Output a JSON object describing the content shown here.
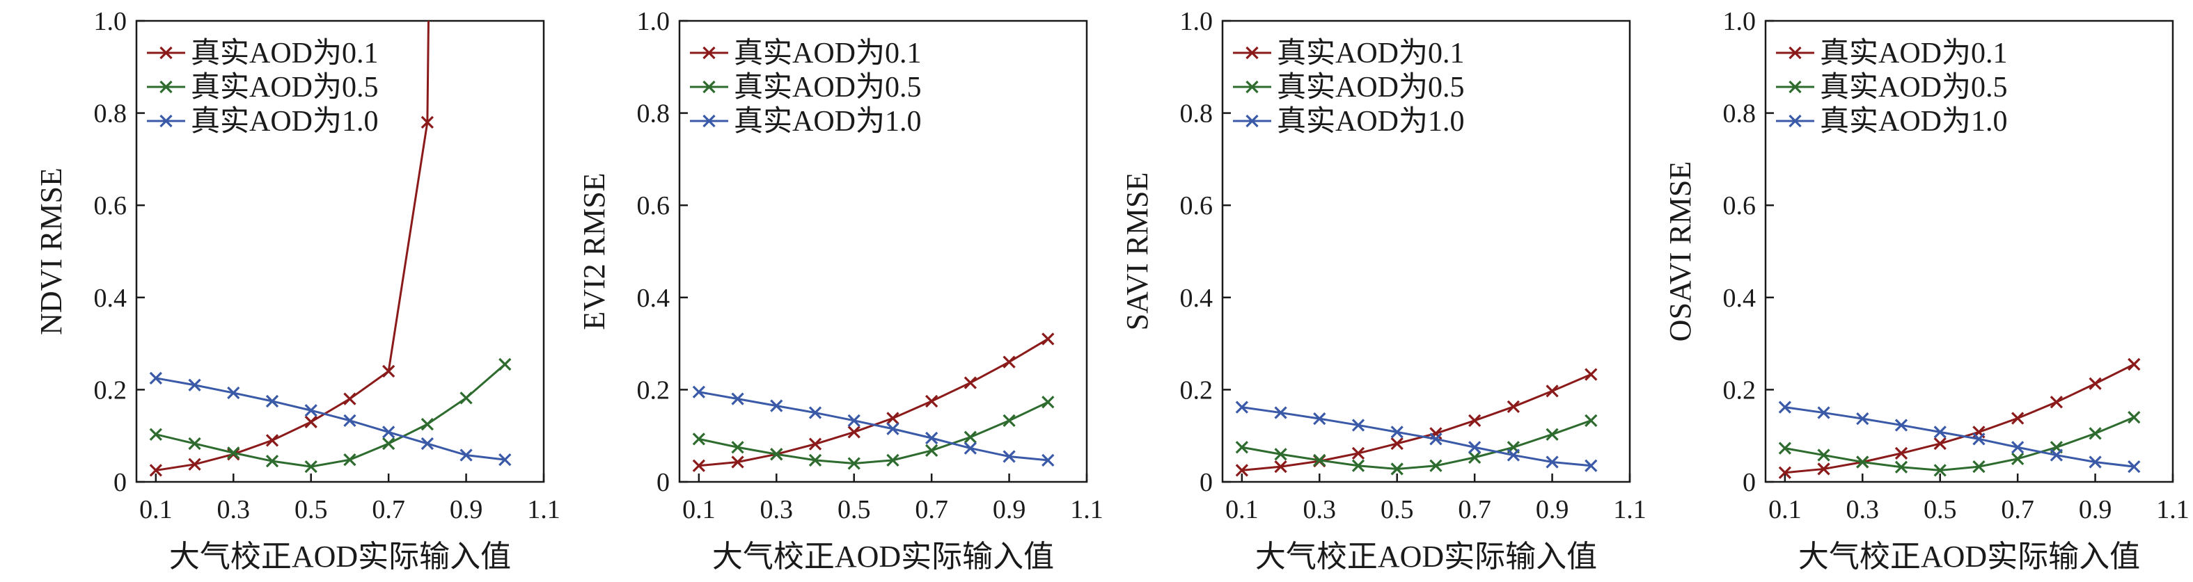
{
  "chart_data": [
    {
      "type": "line",
      "xlabel": "大气校正AOD实际输入值",
      "ylabel": "NDVI RMSE",
      "xlim": [
        0.05,
        1.1
      ],
      "ylim": [
        0,
        1.0
      ],
      "xticks": [
        "0.1",
        "0.3",
        "0.5",
        "0.7",
        "0.9",
        "1.1"
      ],
      "yticks": [
        "0",
        "0.2",
        "0.4",
        "0.6",
        "0.8",
        "1.0"
      ],
      "x": [
        0.1,
        0.2,
        0.3,
        0.4,
        0.5,
        0.6,
        0.7,
        0.8,
        0.9,
        1.0
      ],
      "legend_position": "top-left",
      "series": [
        {
          "name": "真实AOD为0.1",
          "color": "#8b1a1a",
          "values": [
            0.025,
            0.038,
            0.06,
            0.09,
            0.13,
            0.18,
            0.24,
            0.78,
            null,
            null
          ]
        },
        {
          "name": "真实AOD为0.5",
          "color": "#2e6b2e",
          "values": [
            0.103,
            0.083,
            0.063,
            0.045,
            0.033,
            0.048,
            0.083,
            0.125,
            0.182,
            0.255
          ]
        },
        {
          "name": "真实AOD为1.0",
          "color": "#3a5aa8",
          "values": [
            0.225,
            0.21,
            0.193,
            0.175,
            0.155,
            0.133,
            0.108,
            0.083,
            0.058,
            0.048
          ]
        }
      ]
    },
    {
      "type": "line",
      "xlabel": "大气校正AOD实际输入值",
      "ylabel": "EVI2 RMSE",
      "xlim": [
        0.05,
        1.1
      ],
      "ylim": [
        0,
        1.0
      ],
      "xticks": [
        "0.1",
        "0.3",
        "0.5",
        "0.7",
        "0.9",
        "1.1"
      ],
      "yticks": [
        "0",
        "0.2",
        "0.4",
        "0.6",
        "0.8",
        "1.0"
      ],
      "x": [
        0.1,
        0.2,
        0.3,
        0.4,
        0.5,
        0.6,
        0.7,
        0.8,
        0.9,
        1.0
      ],
      "legend_position": "top-left",
      "series": [
        {
          "name": "真实AOD为0.1",
          "color": "#8b1a1a",
          "values": [
            0.035,
            0.043,
            0.06,
            0.082,
            0.108,
            0.138,
            0.175,
            0.215,
            0.26,
            0.31
          ]
        },
        {
          "name": "真实AOD为0.5",
          "color": "#2e6b2e",
          "values": [
            0.093,
            0.075,
            0.06,
            0.047,
            0.04,
            0.047,
            0.068,
            0.097,
            0.133,
            0.173
          ]
        },
        {
          "name": "真实AOD为1.0",
          "color": "#3a5aa8",
          "values": [
            0.195,
            0.18,
            0.165,
            0.15,
            0.133,
            0.115,
            0.095,
            0.073,
            0.055,
            0.047
          ]
        }
      ]
    },
    {
      "type": "line",
      "xlabel": "大气校正AOD实际输入值",
      "ylabel": "SAVI RMSE",
      "xlim": [
        0.05,
        1.1
      ],
      "ylim": [
        0,
        1.0
      ],
      "xticks": [
        "0.1",
        "0.3",
        "0.5",
        "0.7",
        "0.9",
        "1.1"
      ],
      "yticks": [
        "0",
        "0.2",
        "0.4",
        "0.6",
        "0.8",
        "1.0"
      ],
      "x": [
        0.1,
        0.2,
        0.3,
        0.4,
        0.5,
        0.6,
        0.7,
        0.8,
        0.9,
        1.0
      ],
      "legend_position": "top-left",
      "series": [
        {
          "name": "真实AOD为0.1",
          "color": "#8b1a1a",
          "values": [
            0.025,
            0.033,
            0.045,
            0.062,
            0.083,
            0.105,
            0.133,
            0.163,
            0.197,
            0.233
          ]
        },
        {
          "name": "真实AOD为0.5",
          "color": "#2e6b2e",
          "values": [
            0.075,
            0.06,
            0.047,
            0.035,
            0.028,
            0.035,
            0.053,
            0.075,
            0.103,
            0.133
          ]
        },
        {
          "name": "真实AOD为1.0",
          "color": "#3a5aa8",
          "values": [
            0.162,
            0.15,
            0.137,
            0.123,
            0.108,
            0.093,
            0.075,
            0.058,
            0.043,
            0.035
          ]
        }
      ]
    },
    {
      "type": "line",
      "xlabel": "大气校正AOD实际输入值",
      "ylabel": "OSAVI RMSE",
      "xlim": [
        0.05,
        1.1
      ],
      "ylim": [
        0,
        1.0
      ],
      "xticks": [
        "0.1",
        "0.3",
        "0.5",
        "0.7",
        "0.9",
        "1.1"
      ],
      "yticks": [
        "0",
        "0.2",
        "0.4",
        "0.6",
        "0.8",
        "1.0"
      ],
      "x": [
        0.1,
        0.2,
        0.3,
        0.4,
        0.5,
        0.6,
        0.7,
        0.8,
        0.9,
        1.0
      ],
      "legend_position": "top-left",
      "series": [
        {
          "name": "真实AOD为0.1",
          "color": "#8b1a1a",
          "values": [
            0.02,
            0.028,
            0.043,
            0.062,
            0.083,
            0.108,
            0.138,
            0.173,
            0.213,
            0.255
          ]
        },
        {
          "name": "真实AOD为0.5",
          "color": "#2e6b2e",
          "values": [
            0.073,
            0.058,
            0.043,
            0.032,
            0.025,
            0.033,
            0.05,
            0.075,
            0.105,
            0.14
          ]
        },
        {
          "name": "真实AOD为1.0",
          "color": "#3a5aa8",
          "values": [
            0.162,
            0.15,
            0.137,
            0.123,
            0.108,
            0.093,
            0.075,
            0.058,
            0.043,
            0.033
          ]
        }
      ]
    }
  ]
}
